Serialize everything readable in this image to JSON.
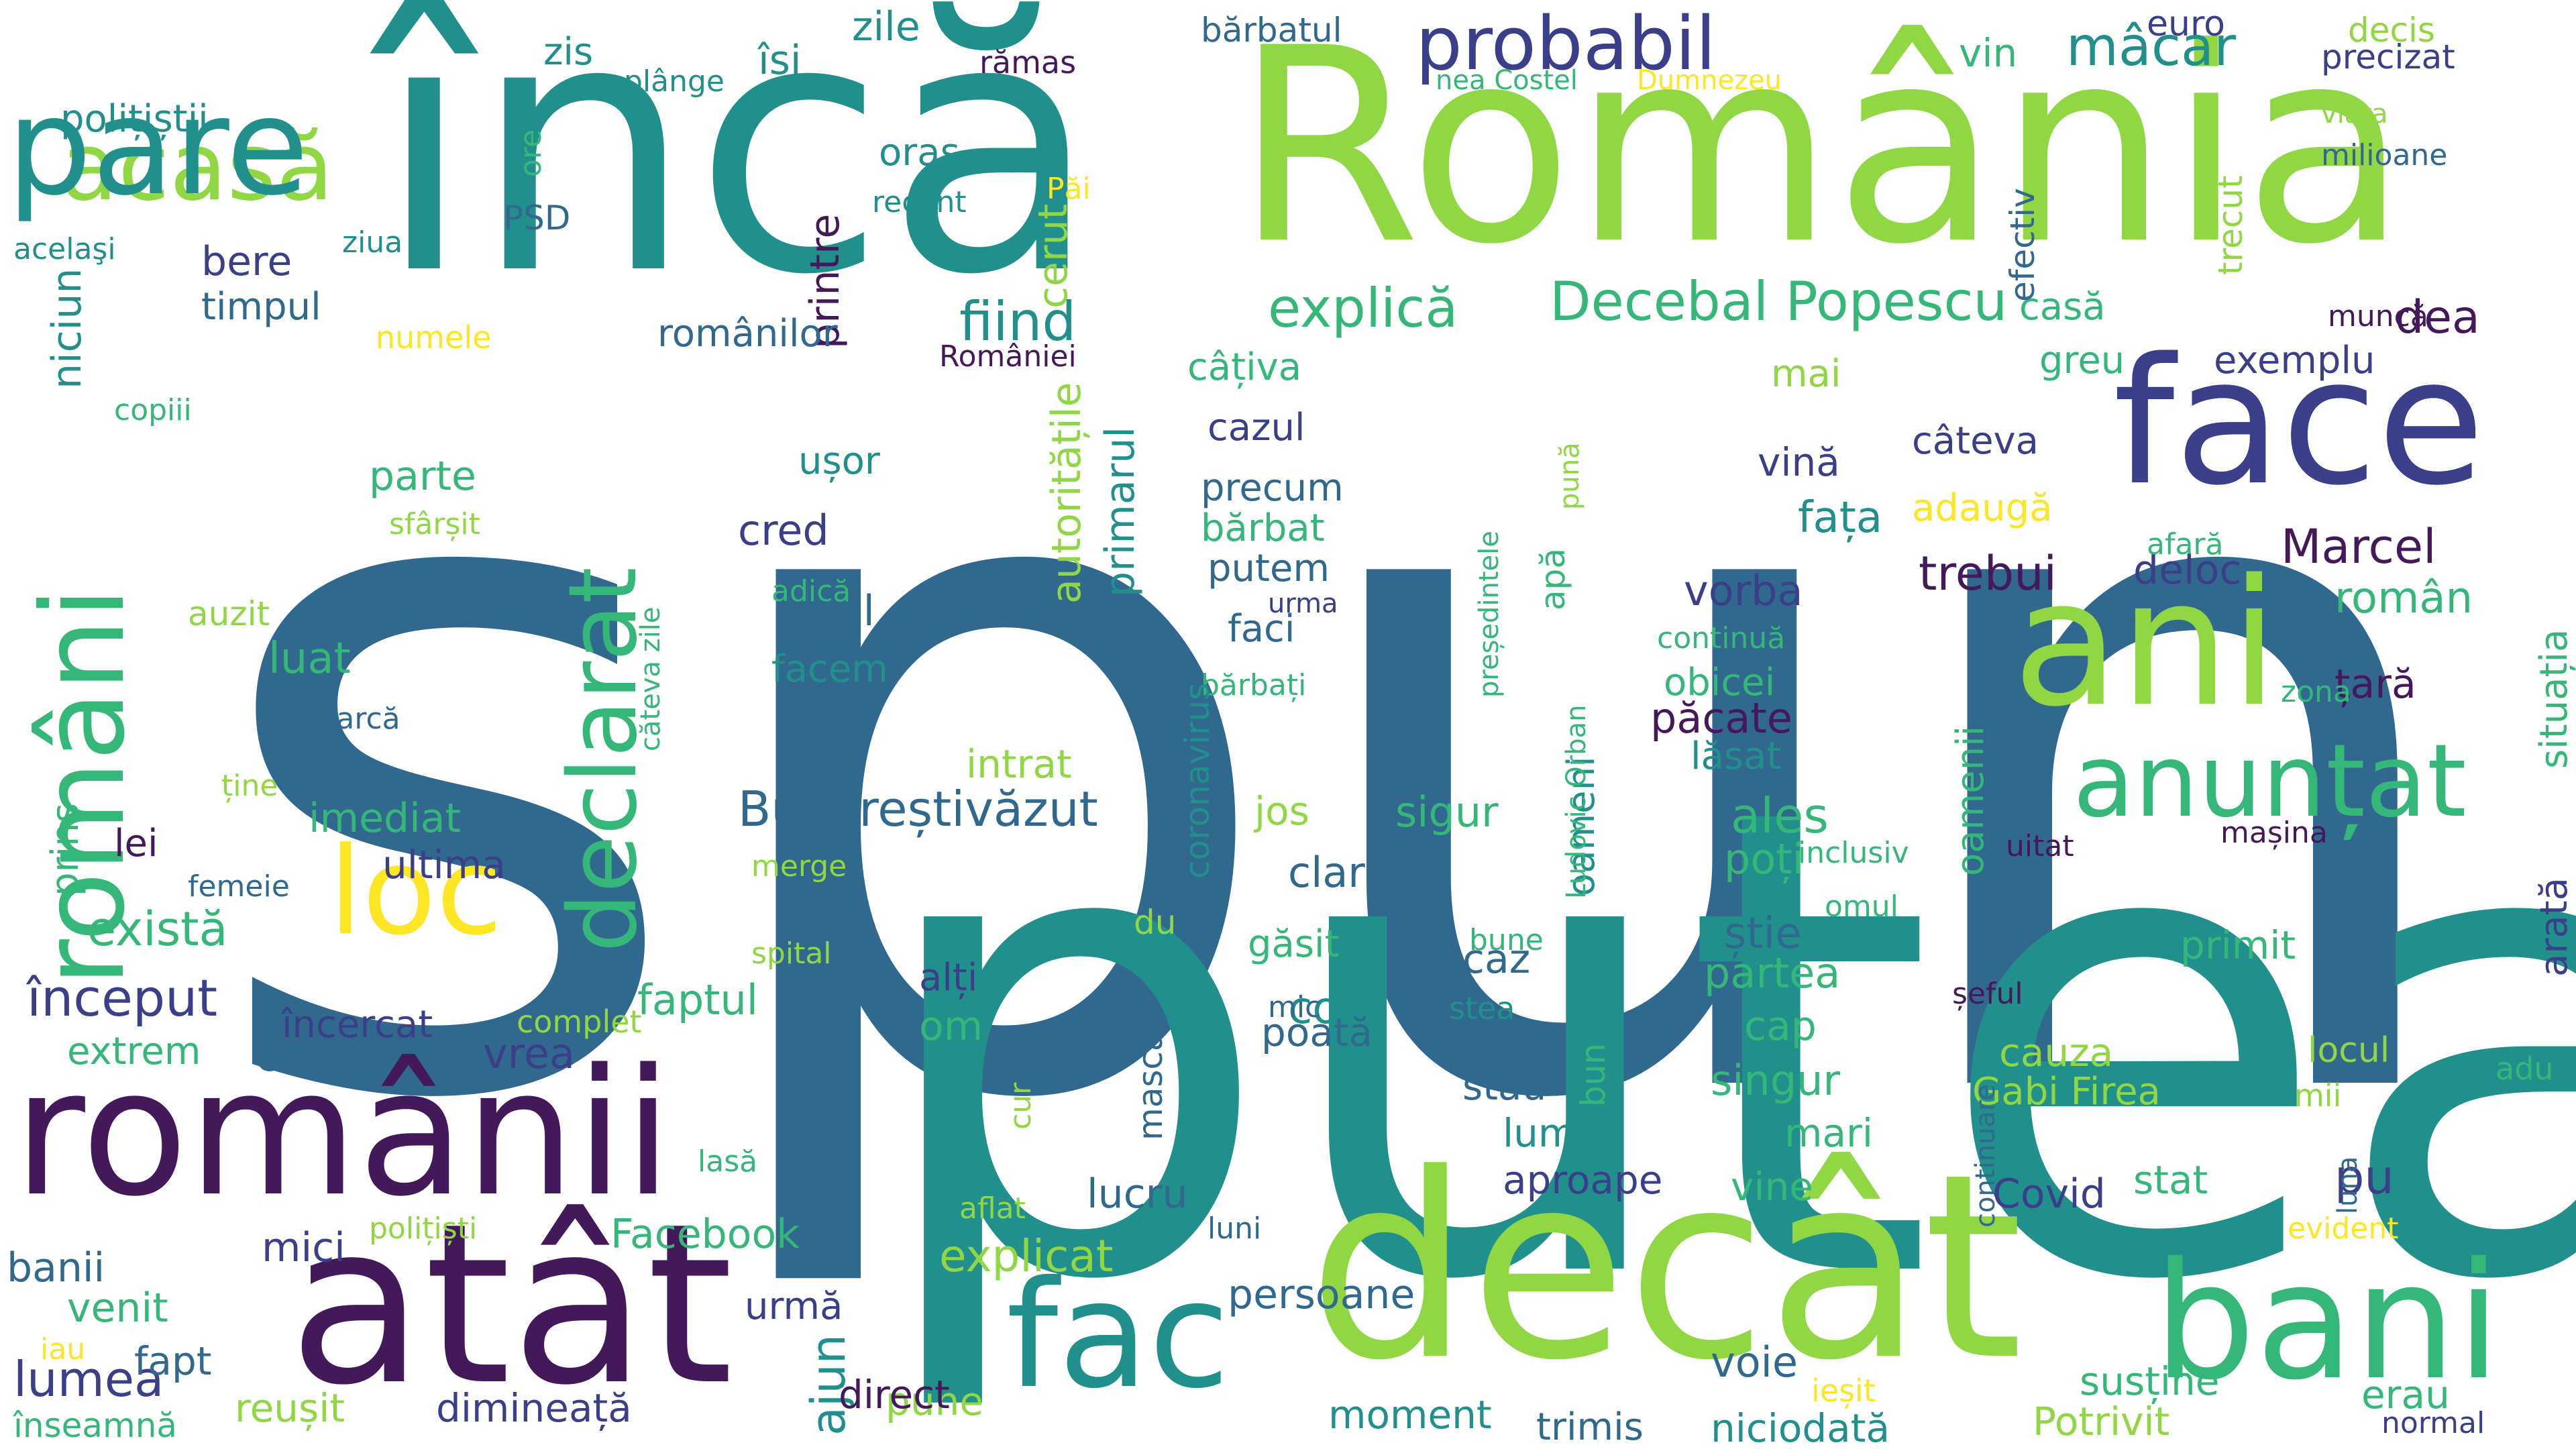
{
  "palette": {
    "purple": "#44195a",
    "indigo": "#3b3f8a",
    "blue": "#31688e",
    "teal": "#21908d",
    "green": "#35b779",
    "lime": "#90d743",
    "yellow": "#fde725"
  },
  "words": [
    "spun",
    "putea",
    "încă",
    "România",
    "decât",
    "atât",
    "români",
    "românii",
    "face",
    "ani",
    "bani",
    "fac",
    "declarat",
    "anunțat",
    "loc",
    "acasă",
    "probabil",
    "Decebal Popescu",
    "explică",
    "fiind",
    "Bucureștivăzut",
    "ales",
    "Marcel",
    "trebui",
    "deloc",
    "român",
    "fața",
    "lăsat",
    "păcate",
    "oameni",
    "oamenii",
    "obicei",
    "vorba",
    "vină",
    "câteva",
    "adaugă",
    "mai",
    "greu",
    "exemplu",
    "casă",
    "dea",
    "cazul",
    "precum",
    "câțiva",
    "bărbat",
    "putem",
    "faci",
    "parte",
    "ușor",
    "cred",
    "anul",
    "facem",
    "luat",
    "imediat",
    "ultima",
    "lei",
    "există",
    "început",
    "încercat",
    "extrem",
    "Orban",
    "vrea",
    "faptul",
    "intrat",
    "autoritățile",
    "primarul",
    "apă",
    "pună",
    "președintele",
    "Ludovic Orban",
    "Covid",
    "pu",
    "poți",
    "arată",
    "situația",
    "țară",
    "zona",
    "afară",
    "continuă",
    "urma",
    "bărbați",
    "cost",
    "sigur",
    "jos",
    "clar",
    "du",
    "găsit",
    "alți",
    "om",
    "caz",
    "poată",
    "mic",
    "stea",
    "bun",
    "bune",
    "știe",
    "partea",
    "cap",
    "singur",
    "cauza",
    "Gabi Firea",
    "primit",
    "locul",
    "mii",
    "adu",
    "stau",
    "lume",
    "aproape",
    "mari",
    "vine",
    "stat",
    "pune",
    "susține",
    "erau",
    "Potrivit",
    "normal",
    "evident",
    "luna",
    "continuare",
    "niciodată",
    "trimis",
    "moment",
    "voie",
    "ieșit",
    "coronavirus",
    "mască",
    "cur",
    "aflat",
    "luni",
    "lucru",
    "explicat",
    "persoane",
    "urmă",
    "ajun",
    "direct",
    "dimineață",
    "lumea",
    "reușit",
    "înseamnă",
    "fapt",
    "venit",
    "banii",
    "iau",
    "mici",
    "Facebook",
    "polițiști",
    "lasă",
    "complet",
    "spital",
    "merge",
    "femeie",
    "ține",
    "prins",
    "încearcă",
    "auzit",
    "sfârșit",
    "copiii",
    "niciun",
    "acelaşi",
    "ziua",
    "numele",
    "timpul",
    "bere",
    "polițiștii",
    "ore",
    "PSD",
    "recent",
    "oraș",
    "Păi",
    "cerut",
    "printre",
    "românilor",
    "României",
    "zis",
    "plânge",
    "își",
    "zile",
    "rămas",
    "bărbatul",
    "nea Costel",
    "Dumnezeu",
    "vin",
    "efectiv",
    "trecut",
    "euro",
    "precizat",
    "decis",
    "viața",
    "milioane",
    "muncă",
    "căteva zile",
    "adică",
    "uitat",
    "inclusiv",
    "mașina",
    "omul",
    "șeful",
    "pare",
    "face",
    "mâcar"
  ]
}
